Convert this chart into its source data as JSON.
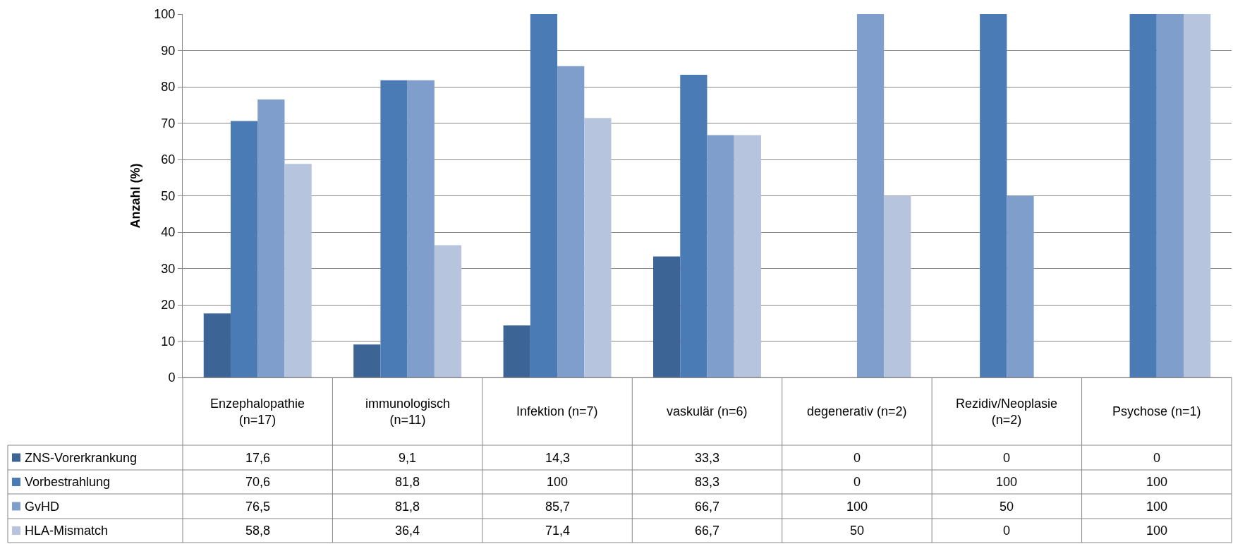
{
  "chart_data": {
    "type": "bar",
    "ylabel": "Anzahl (%)",
    "categories": [
      "Enzephalopathie (n=17)",
      "immunologisch (n=11)",
      "Infektion (n=7)",
      "vaskulär (n=6)",
      "degenerativ (n=2)",
      "Rezidiv/Neoplasie (n=2)",
      "Psychose (n=1)"
    ],
    "series": [
      {
        "name": "ZNS-Vorerkrankung",
        "color": "#3c6495",
        "values": [
          17.6,
          9.1,
          14.3,
          33.3,
          0,
          0,
          0
        ],
        "value_labels": [
          "17,6",
          "9,1",
          "14,3",
          "33,3",
          "0",
          "0",
          "0"
        ]
      },
      {
        "name": "Vorbestrahlung",
        "color": "#4a7bb4",
        "values": [
          70.6,
          81.8,
          100,
          83.3,
          0,
          100,
          100
        ],
        "value_labels": [
          "70,6",
          "81,8",
          "100",
          "83,3",
          "0",
          "100",
          "100"
        ]
      },
      {
        "name": "GvHD",
        "color": "#7f9ecb",
        "values": [
          76.5,
          81.8,
          85.7,
          66.7,
          100,
          50,
          100
        ],
        "value_labels": [
          "76,5",
          "81,8",
          "85,7",
          "66,7",
          "100",
          "50",
          "100"
        ]
      },
      {
        "name": "HLA-Mismatch",
        "color": "#b7c4de",
        "values": [
          58.8,
          36.4,
          71.4,
          66.7,
          50,
          0,
          100
        ],
        "value_labels": [
          "58,8",
          "36,4",
          "71,4",
          "66,7",
          "50",
          "0",
          "100"
        ]
      }
    ],
    "ylim": [
      0,
      100
    ],
    "yticks": [
      0,
      10,
      20,
      30,
      40,
      50,
      60,
      70,
      80,
      90,
      100
    ],
    "grid": "y",
    "legend": "bottom left"
  }
}
